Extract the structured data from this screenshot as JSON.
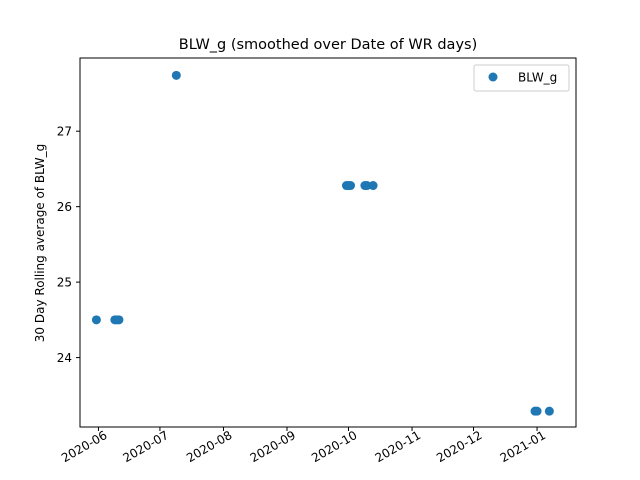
{
  "chart_data": {
    "type": "scatter",
    "title": "BLW_g (smoothed over Date of WR days)",
    "xlabel": "",
    "ylabel": "30 Day Rolling average of BLW_g",
    "x_axis_type": "date",
    "xlim": [
      "2020-05-23",
      "2021-01-20"
    ],
    "ylim": [
      23.08,
      27.97
    ],
    "x_ticks": [
      "2020-06",
      "2020-07",
      "2020-08",
      "2020-09",
      "2020-10",
      "2020-11",
      "2020-12",
      "2021-01"
    ],
    "y_ticks": [
      24,
      25,
      26,
      27
    ],
    "grid": false,
    "legend_position": "top-right",
    "series": [
      {
        "name": "BLW_g",
        "color": "#1f77b4",
        "marker": "circle",
        "points": [
          {
            "x": "2020-05-31",
            "y": 24.5
          },
          {
            "x": "2020-06-09",
            "y": 24.5
          },
          {
            "x": "2020-06-10",
            "y": 24.5
          },
          {
            "x": "2020-06-11",
            "y": 24.5
          },
          {
            "x": "2020-07-09",
            "y": 27.74
          },
          {
            "x": "2020-09-30",
            "y": 26.28
          },
          {
            "x": "2020-10-01",
            "y": 26.28
          },
          {
            "x": "2020-10-02",
            "y": 26.28
          },
          {
            "x": "2020-10-09",
            "y": 26.28
          },
          {
            "x": "2020-10-10",
            "y": 26.28
          },
          {
            "x": "2020-10-13",
            "y": 26.28
          },
          {
            "x": "2020-12-31",
            "y": 23.29
          },
          {
            "x": "2021-01-01",
            "y": 23.29
          },
          {
            "x": "2021-01-07",
            "y": 23.29
          }
        ]
      }
    ]
  }
}
